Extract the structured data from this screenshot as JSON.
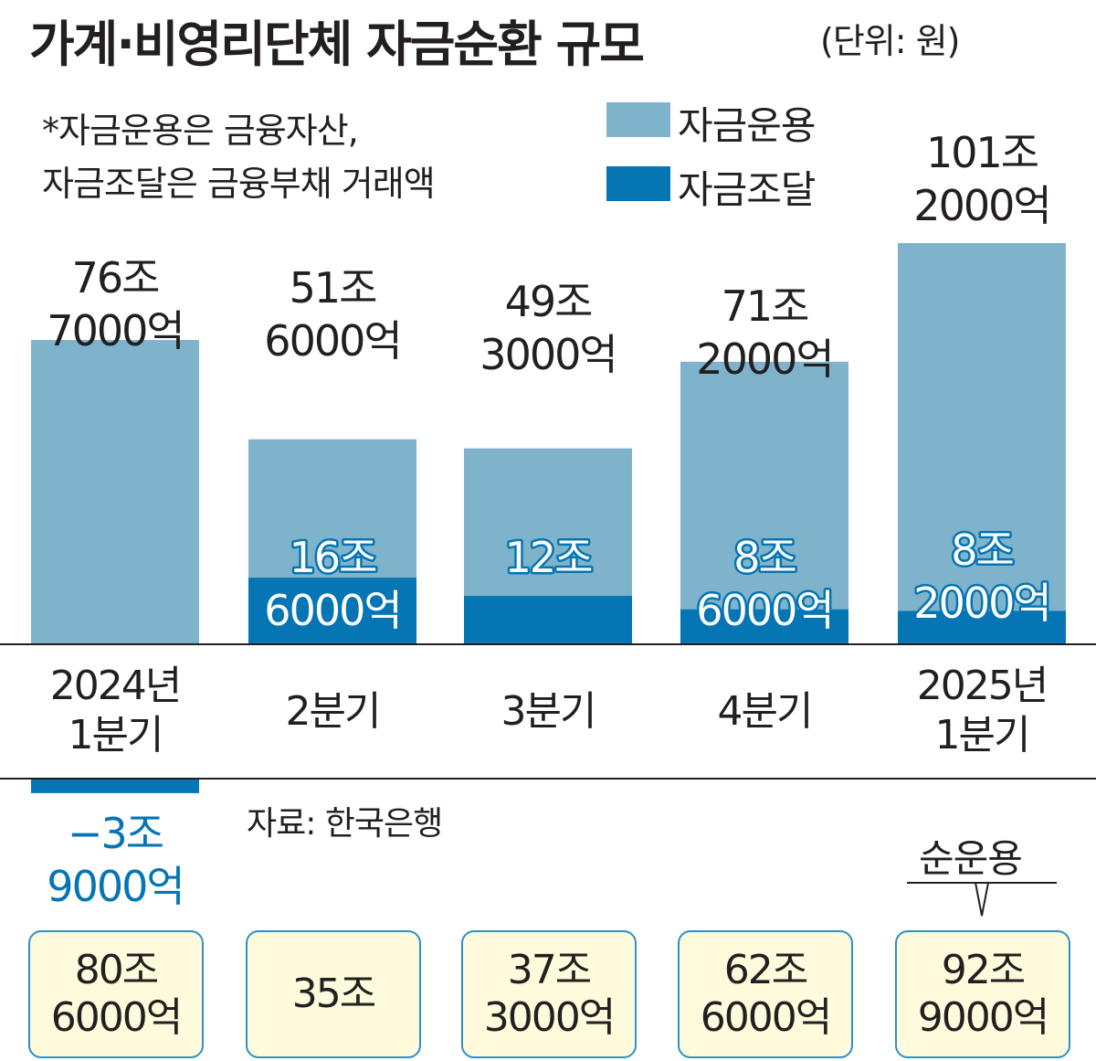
{
  "title": "가계·비영리단체 자금순환 규모",
  "unit": "(단위: 원)",
  "note": [
    "*자금운용은 금융자산,",
    " 자금조달은 금융부채 거래액"
  ],
  "legend": [
    {
      "label": "자금운용",
      "color": "#7fb3cc"
    },
    {
      "label": "자금조달",
      "color": "#0575b4"
    }
  ],
  "source": "자료: 한국은행",
  "net_title": "순운용",
  "chart_data": {
    "type": "bar",
    "categories": [
      "2024년 1분기",
      "2분기",
      "3분기",
      "4분기",
      "2025년 1분기"
    ],
    "category_lines": [
      [
        "2024년",
        "1분기"
      ],
      [
        "2분기"
      ],
      [
        "3분기"
      ],
      [
        "4분기"
      ],
      [
        "2025년",
        "1분기"
      ]
    ],
    "unit": "원",
    "series": [
      {
        "name": "자금운용",
        "color": "#7fb3cc",
        "values": [
          76.7,
          51.6,
          49.3,
          71.2,
          101.2
        ],
        "labels": [
          [
            "76조",
            "7000억"
          ],
          [
            "51조",
            "6000억"
          ],
          [
            "49조",
            "3000억"
          ],
          [
            "71조",
            "2000억"
          ],
          [
            "101조",
            "2000억"
          ]
        ]
      },
      {
        "name": "자금조달",
        "color": "#0575b4",
        "values": [
          -3.9,
          16.6,
          12.0,
          8.6,
          8.2
        ],
        "labels": [
          [
            "−3조",
            "9000억"
          ],
          [
            "16조",
            "6000억"
          ],
          [
            "12조"
          ],
          [
            "8조",
            "6000억"
          ],
          [
            "8조",
            "2000억"
          ]
        ]
      }
    ],
    "net": {
      "name": "순운용",
      "values": [
        80.6,
        35.0,
        37.3,
        62.6,
        92.9
      ],
      "labels": [
        [
          "80조",
          "6000억"
        ],
        [
          "35조"
        ],
        [
          "37조",
          "3000억"
        ],
        [
          "62조",
          "6000억"
        ],
        [
          "92조",
          "9000억"
        ]
      ]
    }
  }
}
